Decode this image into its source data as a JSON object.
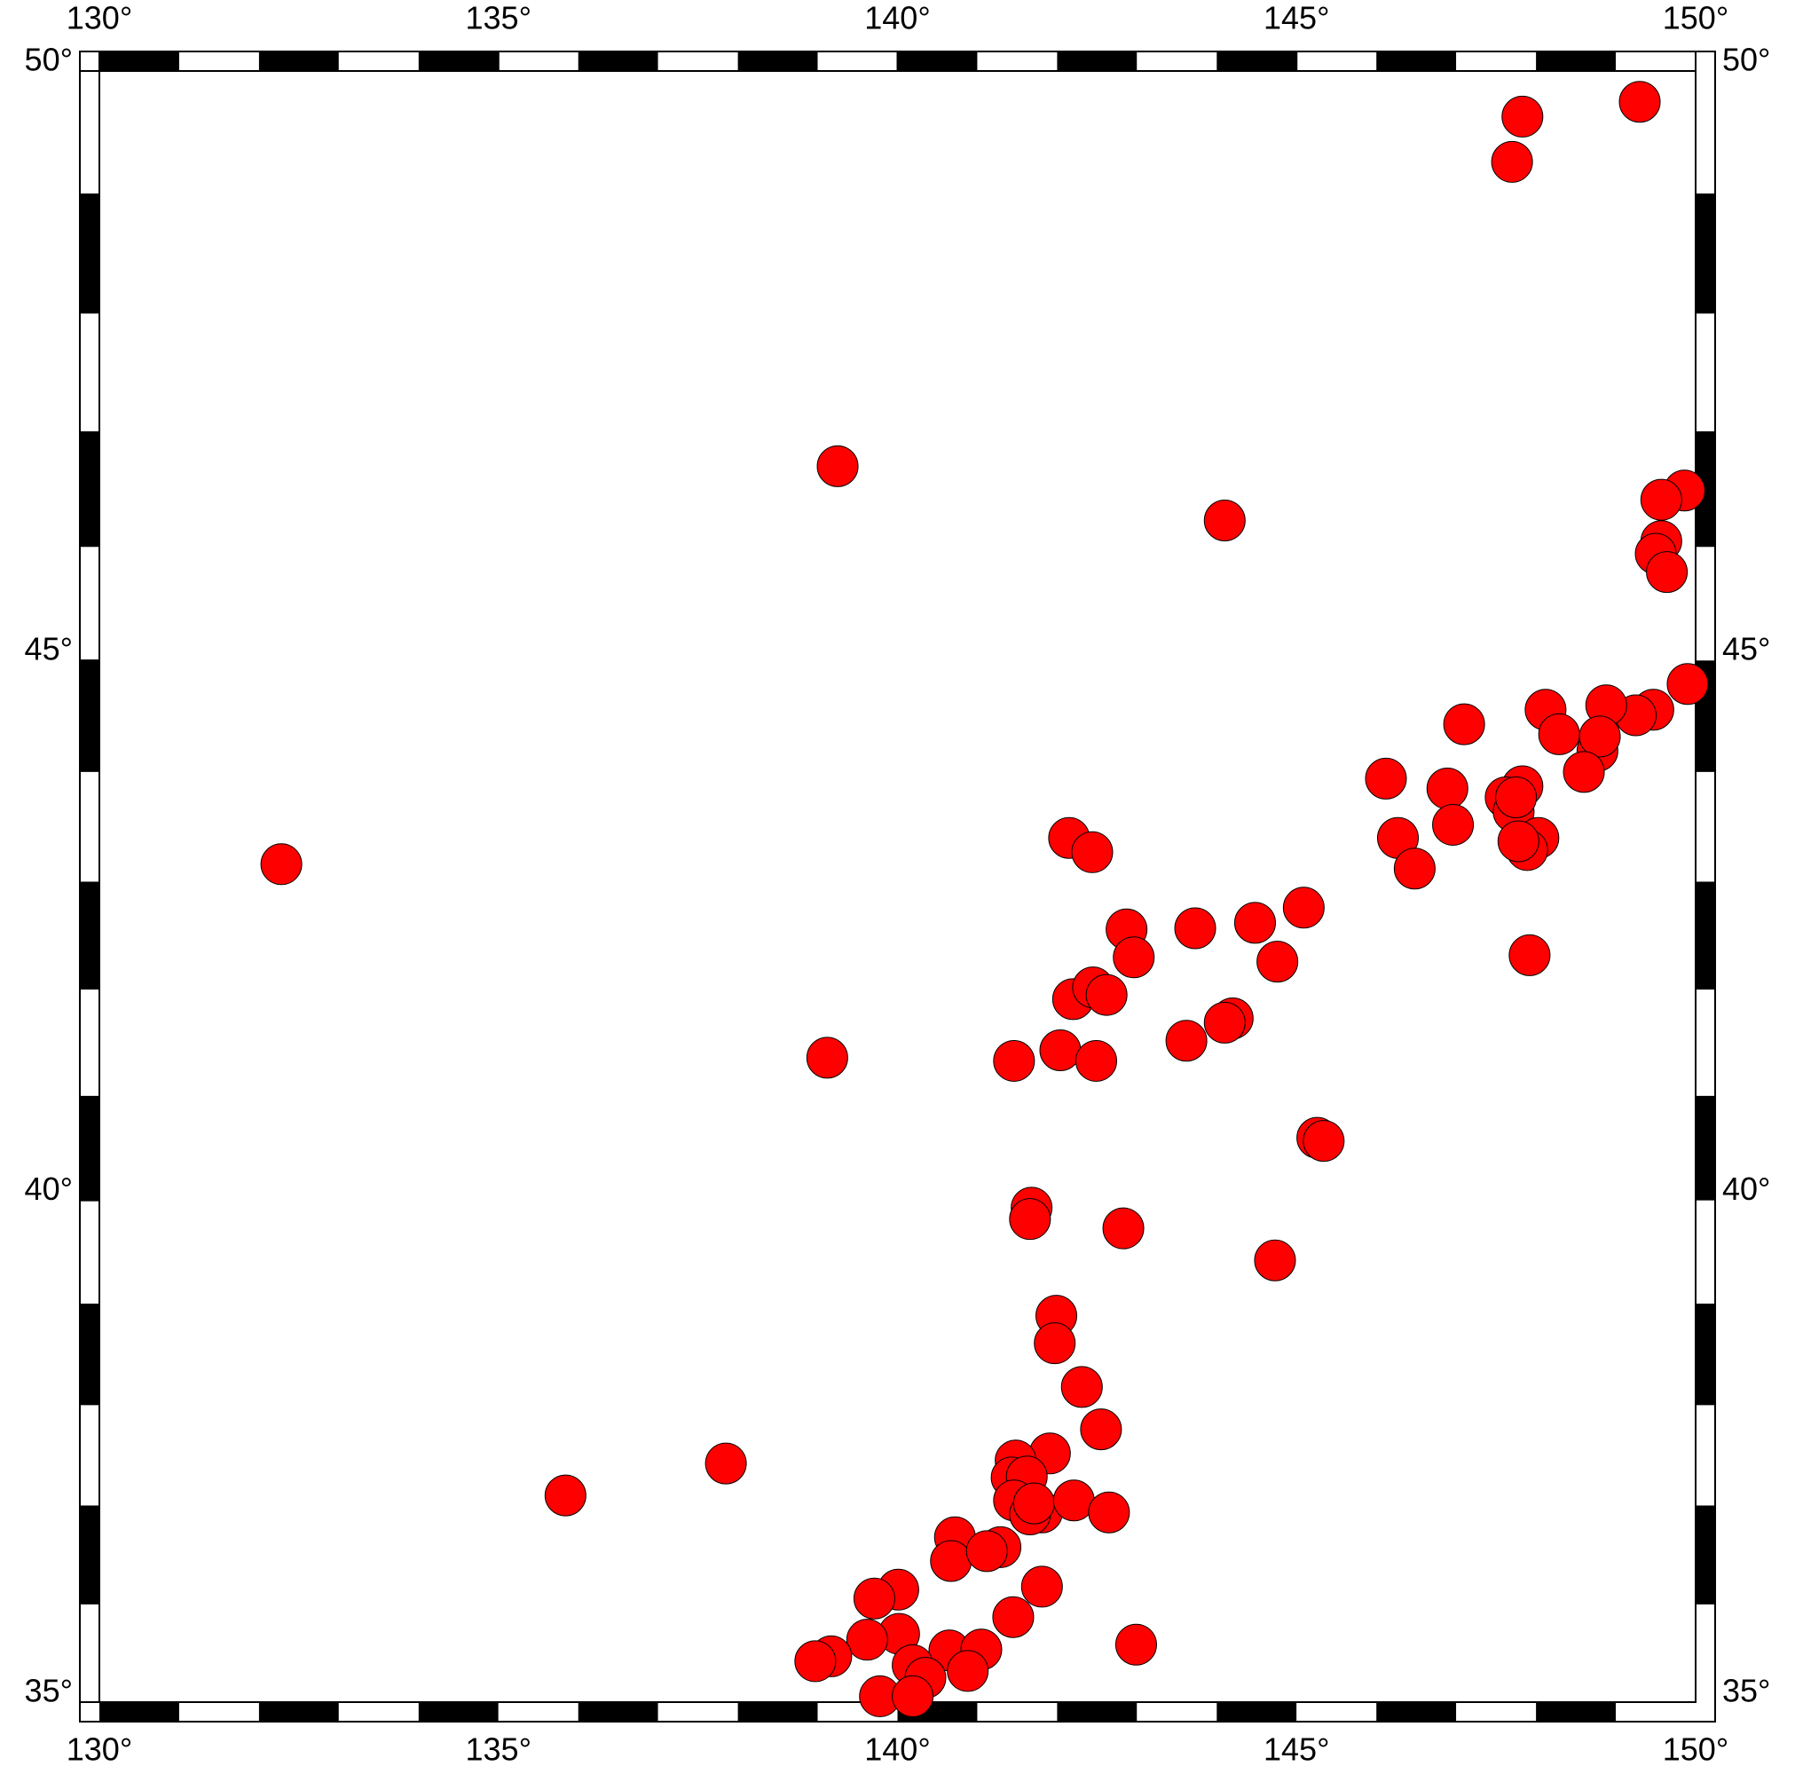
{
  "chart_data": {
    "type": "scatter",
    "projection": "mercator",
    "color": "#ff0000",
    "xlim": [
      130,
      150
    ],
    "ylim": [
      35,
      50
    ],
    "xticks": [
      {
        "value": 130,
        "label": "130°"
      },
      {
        "value": 135,
        "label": "135°"
      },
      {
        "value": 140,
        "label": "140°"
      },
      {
        "value": 145,
        "label": "145°"
      },
      {
        "value": 150,
        "label": "150°"
      }
    ],
    "yticks": [
      {
        "value": 35,
        "label": "35°"
      },
      {
        "value": 40,
        "label": "40°"
      },
      {
        "value": 45,
        "label": "45°"
      },
      {
        "value": 50,
        "label": "50°"
      }
    ],
    "x": [
      149.3,
      147.83,
      147.7,
      139.25,
      144.1,
      149.86,
      149.57,
      149.57,
      149.5,
      149.64,
      149.9,
      149.47,
      149.25,
      148.88,
      148.12,
      148.29,
      148.77,
      148.8,
      148.6,
      147.1,
      146.12,
      146.89,
      146.96,
      147.83,
      147.62,
      147.72,
      147.75,
      148.03,
      147.89,
      147.78,
      146.27,
      146.48,
      147.92,
      142.15,
      142.44,
      145.09,
      144.48,
      143.73,
      142.87,
      142.96,
      144.76,
      142.2,
      142.45,
      142.62,
      144.2,
      144.1,
      143.62,
      142.04,
      141.46,
      142.49,
      139.12,
      132.28,
      145.26,
      145.34,
      141.68,
      141.66,
      142.83,
      144.73,
      141.99,
      141.97,
      142.31,
      142.55,
      137.85,
      135.84,
      141.91,
      141.48,
      141.43,
      141.62,
      141.46,
      141.81,
      141.66,
      141.71,
      142.21,
      142.65,
      140.72,
      140.67,
      141.29,
      141.12,
      141.81,
      140.01,
      139.71,
      141.45,
      140.02,
      139.62,
      142.99,
      139.17,
      138.97,
      140.65,
      141.05,
      140.19,
      140.35,
      140.88,
      139.78,
      140.19
    ],
    "values": [
      49.75,
      49.63,
      49.26,
      46.7,
      46.23,
      46.49,
      46.41,
      46.05,
      45.94,
      45.78,
      44.79,
      44.56,
      44.51,
      44.6,
      44.56,
      44.34,
      44.19,
      44.32,
      44.0,
      44.43,
      43.94,
      43.85,
      43.52,
      43.87,
      43.77,
      43.64,
      43.77,
      43.4,
      43.29,
      43.37,
      43.4,
      43.12,
      42.32,
      43.4,
      43.27,
      42.76,
      42.62,
      42.57,
      42.56,
      42.3,
      42.26,
      41.91,
      42.02,
      41.95,
      41.73,
      41.69,
      41.52,
      41.43,
      41.33,
      41.33,
      41.36,
      43.16,
      40.6,
      40.57,
      39.93,
      39.82,
      39.73,
      39.42,
      38.88,
      38.61,
      38.18,
      37.76,
      37.42,
      37.1,
      37.52,
      37.45,
      37.28,
      37.29,
      37.05,
      36.93,
      36.91,
      37.02,
      37.05,
      36.93,
      36.68,
      36.44,
      36.58,
      36.54,
      36.18,
      36.15,
      36.06,
      35.87,
      35.7,
      35.64,
      35.59,
      35.47,
      35.42,
      35.53,
      35.54,
      35.38,
      35.25,
      35.32,
      35.06,
      35.06
    ]
  }
}
